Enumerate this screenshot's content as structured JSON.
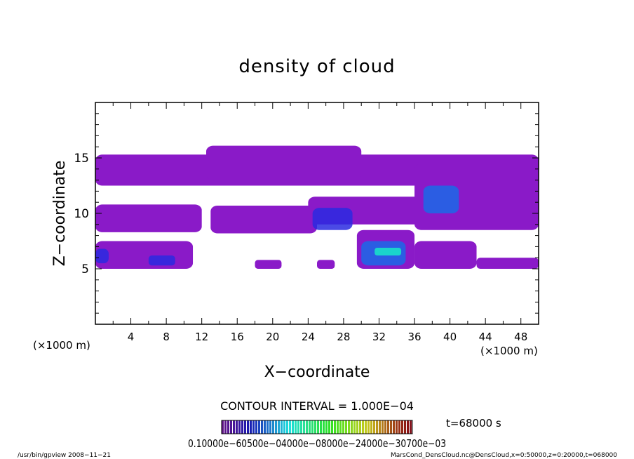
{
  "chart_data": {
    "type": "heatmap",
    "title": "density of cloud",
    "xlabel": "X−coordinate",
    "ylabel": "Z−coordinate",
    "x_unit_left": "(×1000 m)",
    "x_unit_right": "(×1000 m)",
    "xlim": [
      0,
      50
    ],
    "ylim": [
      0,
      20
    ],
    "x_ticks": [
      4,
      8,
      12,
      16,
      20,
      24,
      28,
      32,
      36,
      40,
      44,
      48
    ],
    "y_ticks": [
      5,
      10,
      15
    ],
    "contour_interval_text": "CONTOUR INTERVAL = 1.000E−04",
    "time_text": "t=68000 s",
    "colorbar_labels_text": "0.10000e−60500e−04000e−08000e−24000e−30700e−03",
    "colors": [
      "#5a0a8a",
      "#8a1ac8",
      "#2a2ae0",
      "#1a6ae8",
      "#1aa8f0",
      "#18e8c8",
      "#20e060"
    ],
    "regions": [
      {
        "x": [
          0,
          50
        ],
        "z": [
          12.5,
          15.3
        ],
        "level": 1
      },
      {
        "x": [
          12.5,
          30
        ],
        "z": [
          13,
          16.1
        ],
        "level": 1
      },
      {
        "x": [
          0,
          12
        ],
        "z": [
          8.3,
          10.8
        ],
        "level": 1
      },
      {
        "x": [
          13,
          25
        ],
        "z": [
          8.2,
          10.7
        ],
        "level": 1
      },
      {
        "x": [
          24,
          37
        ],
        "z": [
          9,
          11.5
        ],
        "level": 1
      },
      {
        "x": [
          36,
          50
        ],
        "z": [
          8.5,
          14.5
        ],
        "level": 1
      },
      {
        "x": [
          0,
          11
        ],
        "z": [
          5,
          7.5
        ],
        "level": 1
      },
      {
        "x": [
          29.5,
          36
        ],
        "z": [
          5,
          8.5
        ],
        "level": 1
      },
      {
        "x": [
          36,
          43
        ],
        "z": [
          5,
          7.5
        ],
        "level": 1
      },
      {
        "x": [
          43,
          50
        ],
        "z": [
          5,
          6
        ],
        "level": 1
      },
      {
        "x": [
          18,
          21
        ],
        "z": [
          5,
          5.8
        ],
        "level": 1
      },
      {
        "x": [
          25,
          27
        ],
        "z": [
          5,
          5.8
        ],
        "level": 1
      },
      {
        "x": [
          37,
          41
        ],
        "z": [
          10,
          12.5
        ],
        "level": 3
      },
      {
        "x": [
          24.5,
          29
        ],
        "z": [
          8.5,
          10.5
        ],
        "level": 2
      },
      {
        "x": [
          30,
          35
        ],
        "z": [
          5.3,
          7.5
        ],
        "level": 3
      },
      {
        "x": [
          6,
          9
        ],
        "z": [
          5.3,
          6.2
        ],
        "level": 2
      },
      {
        "x": [
          0,
          1.5
        ],
        "z": [
          5.5,
          6.8
        ],
        "level": 2
      },
      {
        "x": [
          31.5,
          34.5
        ],
        "z": [
          6.2,
          6.9
        ],
        "level": 5
      }
    ]
  },
  "footer": {
    "program": "/usr/bin/gpview   2008−11−21",
    "source": "MarsCond_DensCloud.nc@DensCloud,x=0:50000,z=0:20000,t=068000"
  }
}
